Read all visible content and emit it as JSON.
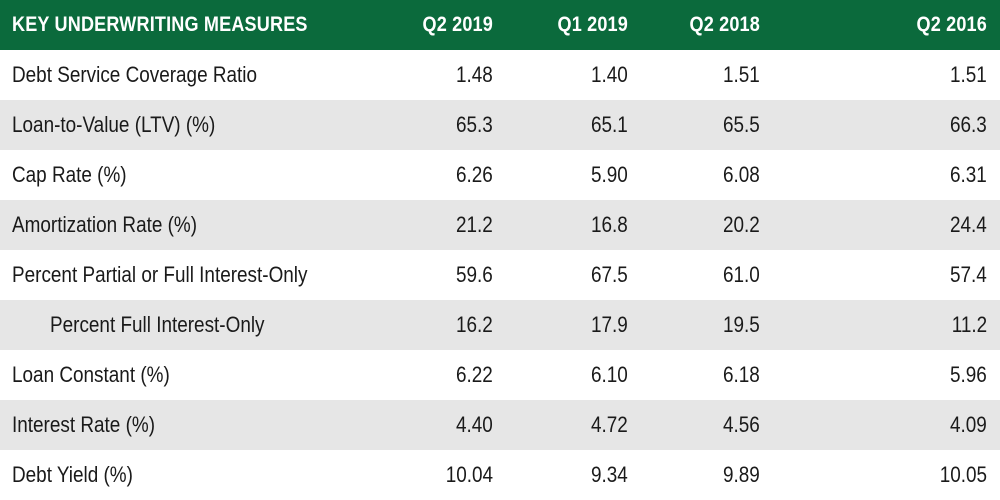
{
  "table": {
    "header": {
      "label": "KEY UNDERWRITING MEASURES",
      "cols": [
        "Q2 2019",
        "Q1 2019",
        "Q2 2018",
        "Q2 2016"
      ]
    },
    "rows": [
      {
        "label": "Debt Service Coverage Ratio",
        "values": [
          "1.48",
          "1.40",
          "1.51",
          "1.51"
        ]
      },
      {
        "label": "Loan-to-Value (LTV) (%)",
        "values": [
          "65.3",
          "65.1",
          "65.5",
          "66.3"
        ]
      },
      {
        "label": "Cap Rate (%)",
        "values": [
          "6.26",
          "5.90",
          "6.08",
          "6.31"
        ]
      },
      {
        "label": "Amortization Rate (%)",
        "values": [
          "21.2",
          "16.8",
          "20.2",
          "24.4"
        ]
      },
      {
        "label": "Percent Partial or Full Interest-Only",
        "values": [
          "59.6",
          "67.5",
          "61.0",
          "57.4"
        ]
      },
      {
        "label": "Percent Full Interest-Only",
        "values": [
          "16.2",
          "17.9",
          "19.5",
          "11.2"
        ]
      },
      {
        "label": "Loan Constant (%)",
        "values": [
          "6.22",
          "6.10",
          "6.18",
          "5.96"
        ]
      },
      {
        "label": "Interest Rate (%)",
        "values": [
          "4.40",
          "4.72",
          "4.56",
          "4.09"
        ]
      },
      {
        "label": "Debt Yield (%)",
        "values": [
          "10.04",
          "9.34",
          "9.89",
          "10.05"
        ]
      }
    ]
  },
  "colors": {
    "header_bg": "#0b6a3c",
    "stripe_bg": "#e6e6e6"
  }
}
